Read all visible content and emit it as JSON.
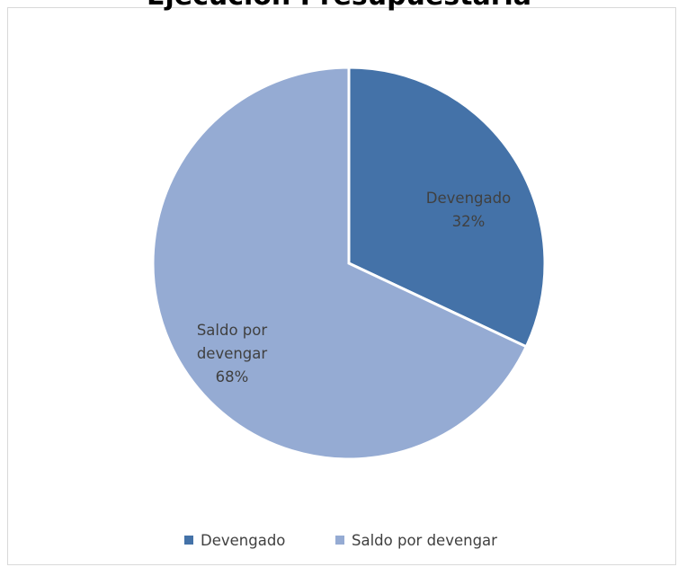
{
  "chart_data": {
    "type": "pie",
    "title": "Ejecución Presupuestaria",
    "categories": [
      "Devengado",
      "Saldo por devengar"
    ],
    "values": [
      32,
      68
    ],
    "data_labels": [
      [
        "Devengado",
        "32%"
      ],
      [
        "Saldo por",
        "devengar",
        "68%"
      ]
    ],
    "colors": [
      "#4472a8",
      "#95abd3"
    ],
    "legend": {
      "placement": "bottom",
      "entries": [
        "Devengado",
        "Saldo por devengar"
      ]
    }
  }
}
